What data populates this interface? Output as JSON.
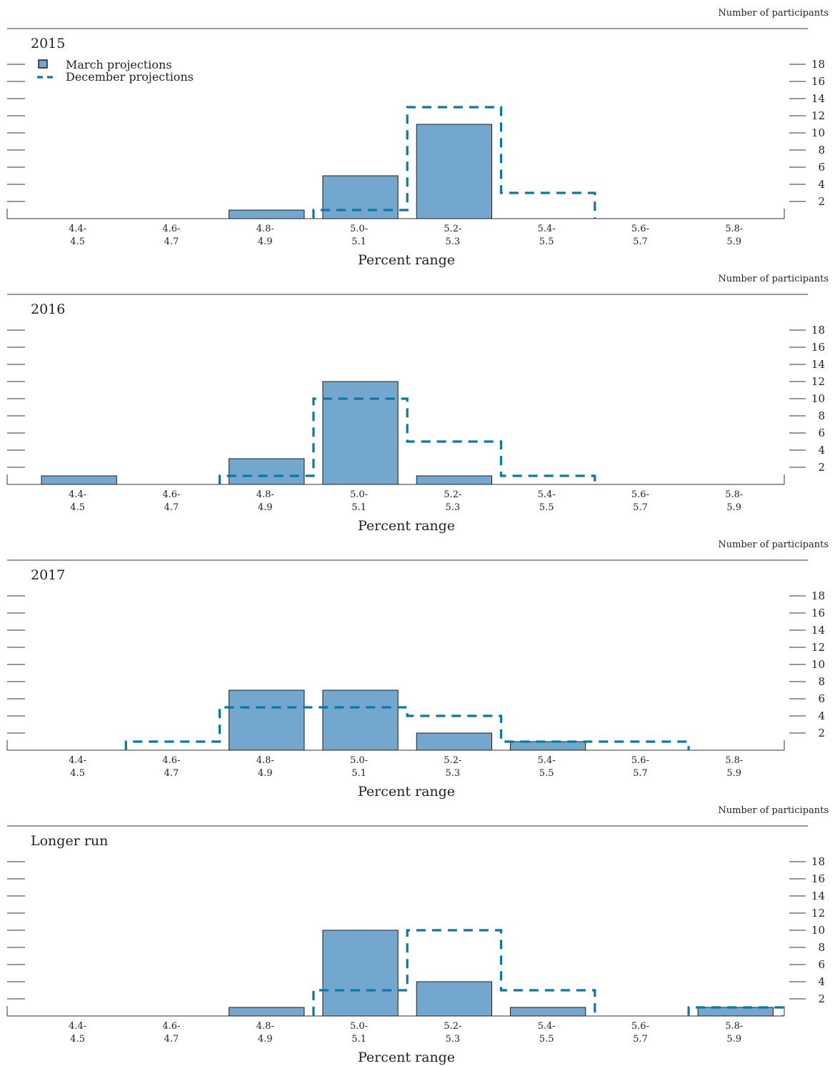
{
  "colors": {
    "bar_fill": "#74a7ce",
    "bar_edge": "#1f1f1f",
    "dec_line": "#0a78a7",
    "axis": "#333333"
  },
  "chart_data": [
    {
      "type": "bar",
      "title": "2015",
      "unit_label": "Number of participants",
      "xlabel": "Percent range",
      "categories": [
        "4.4-4.5",
        "4.6-4.7",
        "4.8-4.9",
        "5.0-5.1",
        "5.2-5.3",
        "5.4-5.5",
        "5.6-5.7",
        "5.8-5.9"
      ],
      "category_labels": [
        [
          "4.4-",
          "4.5"
        ],
        [
          "4.6-",
          "4.7"
        ],
        [
          "4.8-",
          "4.9"
        ],
        [
          "5.0-",
          "5.1"
        ],
        [
          "5.2-",
          "5.3"
        ],
        [
          "5.4-",
          "5.5"
        ],
        [
          "5.6-",
          "5.7"
        ],
        [
          "5.8-",
          "5.9"
        ]
      ],
      "ylim": [
        0,
        18
      ],
      "yticks": [
        2,
        4,
        6,
        8,
        10,
        12,
        14,
        16,
        18
      ],
      "legend": {
        "placement": "top-left",
        "entries": [
          "March projections",
          "December projections"
        ]
      },
      "series": [
        {
          "name": "March projections",
          "style": "bar",
          "values": [
            0,
            0,
            1,
            5,
            11,
            0,
            0,
            0
          ]
        },
        {
          "name": "December projections",
          "style": "dashed-step",
          "values": [
            0,
            0,
            0,
            1,
            13,
            3,
            0,
            0
          ]
        }
      ]
    },
    {
      "type": "bar",
      "title": "2016",
      "unit_label": "Number of participants",
      "xlabel": "Percent range",
      "categories": [
        "4.4-4.5",
        "4.6-4.7",
        "4.8-4.9",
        "5.0-5.1",
        "5.2-5.3",
        "5.4-5.5",
        "5.6-5.7",
        "5.8-5.9"
      ],
      "category_labels": [
        [
          "4.4-",
          "4.5"
        ],
        [
          "4.6-",
          "4.7"
        ],
        [
          "4.8-",
          "4.9"
        ],
        [
          "5.0-",
          "5.1"
        ],
        [
          "5.2-",
          "5.3"
        ],
        [
          "5.4-",
          "5.5"
        ],
        [
          "5.6-",
          "5.7"
        ],
        [
          "5.8-",
          "5.9"
        ]
      ],
      "ylim": [
        0,
        18
      ],
      "yticks": [
        2,
        4,
        6,
        8,
        10,
        12,
        14,
        16,
        18
      ],
      "series": [
        {
          "name": "March projections",
          "style": "bar",
          "values": [
            1,
            0,
            3,
            12,
            1,
            0,
            0,
            0
          ]
        },
        {
          "name": "December projections",
          "style": "dashed-step",
          "values": [
            0,
            0,
            1,
            10,
            5,
            1,
            0,
            0
          ]
        }
      ]
    },
    {
      "type": "bar",
      "title": "2017",
      "unit_label": "Number of participants",
      "xlabel": "Percent range",
      "categories": [
        "4.4-4.5",
        "4.6-4.7",
        "4.8-4.9",
        "5.0-5.1",
        "5.2-5.3",
        "5.4-5.5",
        "5.6-5.7",
        "5.8-5.9"
      ],
      "category_labels": [
        [
          "4.4-",
          "4.5"
        ],
        [
          "4.6-",
          "4.7"
        ],
        [
          "4.8-",
          "4.9"
        ],
        [
          "5.0-",
          "5.1"
        ],
        [
          "5.2-",
          "5.3"
        ],
        [
          "5.4-",
          "5.5"
        ],
        [
          "5.6-",
          "5.7"
        ],
        [
          "5.8-",
          "5.9"
        ]
      ],
      "ylim": [
        0,
        18
      ],
      "yticks": [
        2,
        4,
        6,
        8,
        10,
        12,
        14,
        16,
        18
      ],
      "series": [
        {
          "name": "March projections",
          "style": "bar",
          "values": [
            0,
            0,
            7,
            7,
            2,
            1,
            0,
            0
          ]
        },
        {
          "name": "December projections",
          "style": "dashed-step",
          "values": [
            0,
            1,
            5,
            5,
            4,
            1,
            1,
            0
          ]
        }
      ]
    },
    {
      "type": "bar",
      "title": "Longer run",
      "unit_label": "Number of participants",
      "xlabel": "Percent range",
      "categories": [
        "4.4-4.5",
        "4.6-4.7",
        "4.8-4.9",
        "5.0-5.1",
        "5.2-5.3",
        "5.4-5.5",
        "5.6-5.7",
        "5.8-5.9"
      ],
      "category_labels": [
        [
          "4.4-",
          "4.5"
        ],
        [
          "4.6-",
          "4.7"
        ],
        [
          "4.8-",
          "4.9"
        ],
        [
          "5.0-",
          "5.1"
        ],
        [
          "5.2-",
          "5.3"
        ],
        [
          "5.4-",
          "5.5"
        ],
        [
          "5.6-",
          "5.7"
        ],
        [
          "5.8-",
          "5.9"
        ]
      ],
      "ylim": [
        0,
        18
      ],
      "yticks": [
        2,
        4,
        6,
        8,
        10,
        12,
        14,
        16,
        18
      ],
      "series": [
        {
          "name": "March projections",
          "style": "bar",
          "values": [
            0,
            0,
            1,
            10,
            4,
            1,
            0,
            1
          ]
        },
        {
          "name": "December projections",
          "style": "dashed-step",
          "values": [
            0,
            0,
            0,
            3,
            10,
            3,
            0,
            1
          ]
        }
      ]
    }
  ]
}
